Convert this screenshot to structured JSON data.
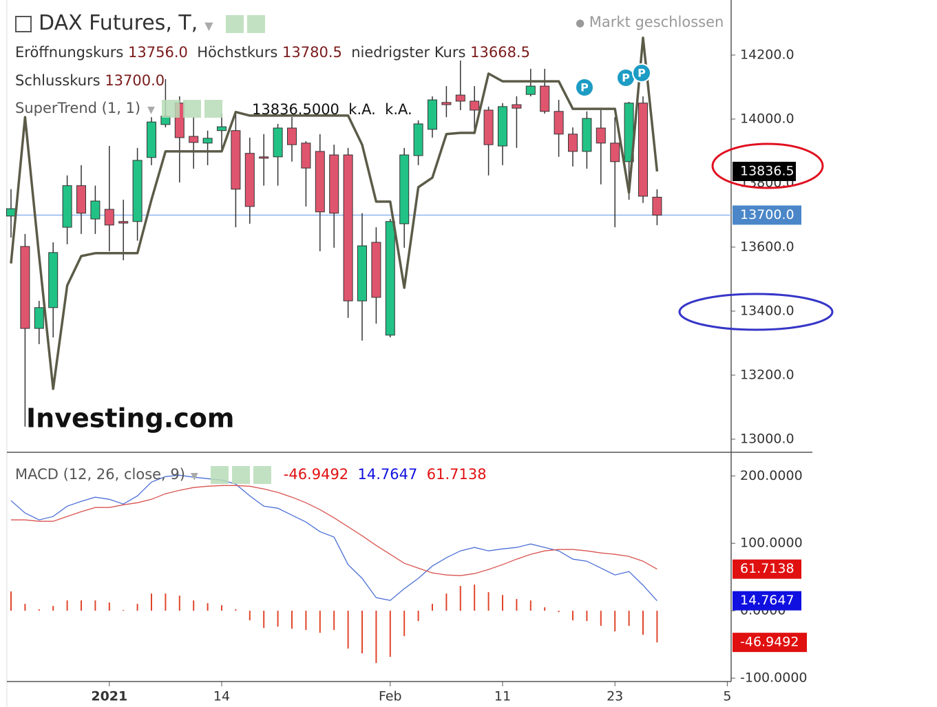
{
  "chart_data": [
    {
      "type": "candlestick",
      "title": "DAX Futures, T,",
      "status": "Markt geschlossen",
      "watermark": "Investing.com",
      "categories": [
        null,
        null,
        null,
        null,
        null,
        null,
        null,
        "2021",
        null,
        null,
        null,
        null,
        null,
        null,
        null,
        "14",
        null,
        null,
        null,
        null,
        null,
        null,
        null,
        null,
        null,
        null,
        null,
        "Feb",
        null,
        null,
        null,
        null,
        null,
        null,
        null,
        "11",
        null,
        null,
        null,
        null,
        null,
        null,
        null,
        "23",
        null,
        null,
        null,
        null,
        null,
        null,
        null,
        "5"
      ],
      "open": [
        13697,
        13602,
        13346,
        13411,
        13662,
        13792,
        13688,
        13718,
        13680,
        13680,
        13880,
        13983,
        14050,
        13946,
        13925,
        13964,
        13964,
        13893,
        13882,
        13882,
        13972,
        13925,
        13899,
        13888,
        13888,
        13432,
        13615,
        13325,
        13673,
        13886,
        13968,
        14052,
        14075,
        14056,
        14028,
        13916,
        14045,
        14077,
        14103,
        14024,
        13953,
        13899,
        13972,
        13925,
        13867,
        14050,
        13756,
        null,
        null,
        null,
        null,
        null
      ],
      "high": [
        13781,
        13641,
        13432,
        13615,
        13824,
        13856,
        13792,
        13916,
        13748,
        13910,
        14006,
        14125,
        14071,
        14006,
        13964,
        14017,
        14017,
        13942,
        13953,
        13985,
        14006,
        13931,
        13953,
        13920,
        13910,
        13706,
        13662,
        13688,
        13910,
        13996,
        14071,
        14103,
        14183,
        14103,
        14039,
        14050,
        14071,
        14157,
        14157,
        14060,
        13974,
        14024,
        14028,
        14006,
        14054,
        14071,
        13780.5,
        null,
        null,
        null,
        null,
        null
      ],
      "low": [
        13630,
        13039,
        13297,
        13318,
        13609,
        13641,
        13641,
        13587,
        13559,
        13620,
        13856,
        13974,
        13802,
        13845,
        13856,
        13899,
        13662,
        13673,
        13792,
        13792,
        13867,
        13727,
        13587,
        13598,
        13379,
        13308,
        13361,
        13318,
        13598,
        13856,
        13942,
        14006,
        14028,
        13953,
        13824,
        13856,
        13910,
        14071,
        14017,
        13882,
        13852,
        13845,
        13796,
        13662,
        13748,
        13738,
        13668.5,
        null,
        null,
        null,
        null,
        null
      ],
      "close": [
        13720,
        13346,
        13411,
        13583,
        13792,
        13706,
        13744,
        13669,
        13675,
        13871,
        13991,
        14009,
        13942,
        13927,
        13940,
        13976,
        13781,
        13727,
        13880,
        13972,
        13920,
        13847,
        13710,
        13706,
        13432,
        13604,
        13443,
        13680,
        13888,
        13985,
        14060,
        14045,
        14056,
        14028,
        13920,
        14039,
        14034,
        14103,
        14024,
        13953,
        13899,
        14002,
        13925,
        13867,
        14050,
        13759,
        13700,
        null,
        null,
        null,
        null,
        null
      ],
      "up_color": "#22c286",
      "down_color": "#e0556e",
      "ohlc_names": [
        "Eröffnungskurs",
        "Höchstkurs",
        "niedrigster Kurs",
        "Schlusskurs"
      ],
      "ohlc_labels": [
        "13756.0",
        "13780.5",
        "13668.5",
        "13700.0"
      ],
      "close_label": "13700.0",
      "close_line_color": "#8db4ef",
      "close_badge_color": "#4a86c8",
      "supertrend": {
        "name": "SuperTrend (1, 1)",
        "color": "#5b5b48",
        "values": [
          13549,
          14006,
          13572,
          13157,
          13480,
          13572,
          13581,
          13581,
          13581,
          13581,
          13748,
          13899,
          13899,
          13899,
          13899,
          13899,
          14022,
          14011,
          14011,
          14011,
          14011,
          14011,
          14011,
          14011,
          14011,
          13920,
          13742,
          13742,
          13473,
          13787,
          13817,
          13953,
          13957,
          13957,
          14142,
          14118,
          14118,
          14118,
          14118,
          14118,
          14032,
          14032,
          14032,
          14032,
          13770,
          14254,
          13836.5,
          null,
          null,
          null,
          null,
          null
        ],
        "legend_label": "13836.5000",
        "axis_label": "13836.5",
        "extra_labels": [
          "k.A.",
          "k.A."
        ]
      },
      "pivot_label": "P",
      "ylim": [
        12959,
        14372
      ],
      "yticks": [
        {
          "value": 13000,
          "label": "13000.0"
        },
        {
          "value": 13200,
          "label": "13200.0"
        },
        {
          "value": 13400,
          "label": "13400.0"
        },
        {
          "value": 13600,
          "label": "13600.0"
        },
        {
          "value": 13800,
          "label": "13800.0"
        },
        {
          "value": 14000,
          "label": "14000.0"
        },
        {
          "value": 14200,
          "label": "14200.0"
        }
      ]
    },
    {
      "type": "macd",
      "title": "MACD (12, 26, close, 9)",
      "series": [
        {
          "color": "#e0452a",
          "label_color": "#e01010",
          "kind": "histogram",
          "values": [
            28.6,
            10.2,
            2,
            7.1,
            15.3,
            15.3,
            15.3,
            12.2,
            1.1,
            10.2,
            25.5,
            25.5,
            22.4,
            15.3,
            11.2,
            8.2,
            2.1,
            -14.3,
            -25.5,
            -23.5,
            -26.6,
            -28.6,
            -32.7,
            -28.6,
            -56.1,
            -63.2,
            -77.5,
            -68.4,
            -37.7,
            -15.3,
            10.2,
            25.5,
            36.8,
            38.8,
            27.6,
            23.4,
            17.4,
            15.3,
            5.1,
            -2,
            -14.3,
            -15.3,
            -22.4,
            -30.6,
            -22.4,
            -35.7,
            -46.9492,
            null,
            null,
            null,
            null,
            null
          ]
        },
        {
          "color": "#4c6fd6",
          "label_color": "#1010e0",
          "kind": "line",
          "values": [
            163.3,
            144.9,
            134.7,
            139.8,
            155.1,
            162.2,
            168.4,
            165.3,
            158.2,
            170.4,
            190.8,
            199,
            201,
            198,
            195.9,
            193.9,
            187.8,
            170.4,
            155.1,
            152,
            141.8,
            131.6,
            117.3,
            109.2,
            68.4,
            48,
            19.4,
            15.3,
            32.7,
            48,
            66.3,
            78.6,
            88.8,
            93.9,
            88.8,
            91.8,
            93.9,
            99,
            93.9,
            88.8,
            76.5,
            73.5,
            63.3,
            53.1,
            58.2,
            37.8,
            14.7647,
            null,
            null,
            null,
            null,
            null
          ]
        },
        {
          "color": "#d9534f",
          "label_color": "#e01010",
          "kind": "line",
          "values": [
            134.7,
            134.7,
            132.7,
            132.7,
            139.8,
            146.9,
            153.1,
            153.1,
            157.1,
            160.2,
            165.3,
            173.5,
            178.6,
            182.7,
            184.7,
            185.7,
            185.7,
            184.7,
            180.6,
            175.5,
            168.4,
            160.2,
            150,
            137.8,
            124.5,
            111.2,
            96.9,
            83.7,
            70.4,
            63.3,
            56.1,
            53.1,
            52,
            55.1,
            61.2,
            68.4,
            76.5,
            83.7,
            88.8,
            90.8,
            90.8,
            88.8,
            85.7,
            83.7,
            80.6,
            73.5,
            61.7138,
            null,
            null,
            null,
            null,
            null
          ]
        }
      ],
      "ylim": [
        -105,
        235
      ],
      "yticks": [
        {
          "value": -100,
          "label": "-100.0000"
        },
        {
          "value": 0,
          "label": "0.0000"
        },
        {
          "value": 100,
          "label": "100.0000"
        },
        {
          "value": 200,
          "label": "200.0000"
        }
      ]
    }
  ]
}
